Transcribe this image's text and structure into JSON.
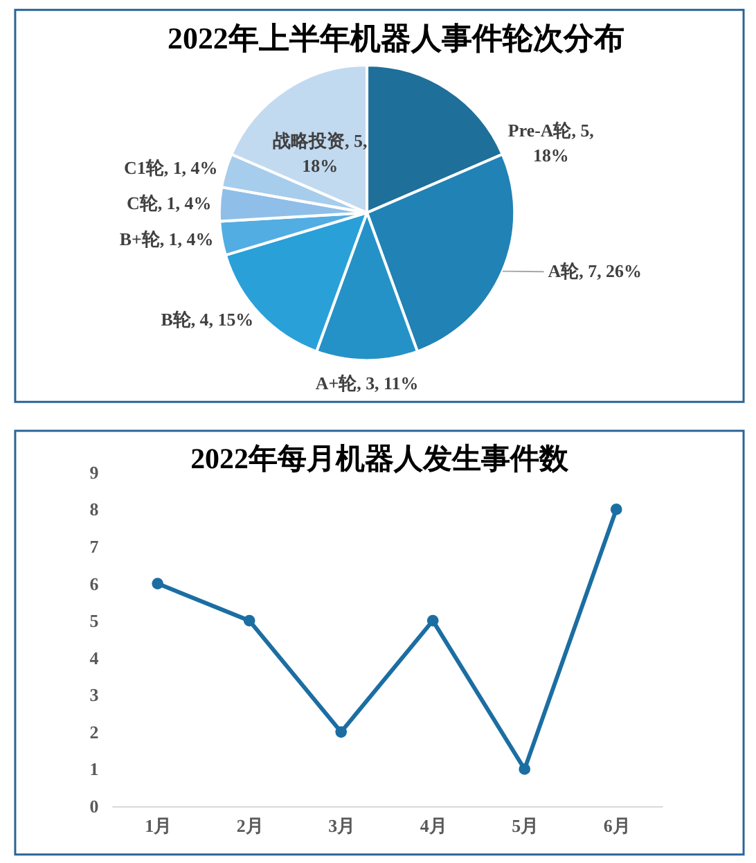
{
  "chart_data": [
    {
      "type": "pie",
      "title": "2022年上半年机器人事件轮次分布",
      "categories": [
        "Pre-A轮",
        "A轮",
        "A+轮",
        "B轮",
        "B+轮",
        "C轮",
        "C1轮",
        "战略投资"
      ],
      "values": [
        5,
        7,
        3,
        4,
        1,
        1,
        1,
        5
      ],
      "colors": [
        "#1e6f99",
        "#2182b5",
        "#2592c7",
        "#2aa0d8",
        "#52ade2",
        "#8fbfe8",
        "#a7cdec",
        "#c2daf0"
      ],
      "value_labels": [
        "5, 18%",
        "7, 26%",
        "3, 11%",
        "4, 15%",
        "1, 4%",
        "1, 4%",
        "1, 4%",
        "5, 18%"
      ]
    },
    {
      "type": "line",
      "title": "2022年每月机器人发生事件数",
      "categories": [
        "1月",
        "2月",
        "3月",
        "4月",
        "5月",
        "6月"
      ],
      "series": [
        {
          "color": "#1b6ea2",
          "values": [
            6,
            5,
            2,
            5,
            1,
            8
          ]
        }
      ],
      "ylim": [
        0,
        9
      ],
      "yticks": [
        0,
        1,
        2,
        3,
        4,
        5,
        6,
        7,
        8,
        9
      ],
      "marker": "circle",
      "line_style": "solid"
    }
  ]
}
